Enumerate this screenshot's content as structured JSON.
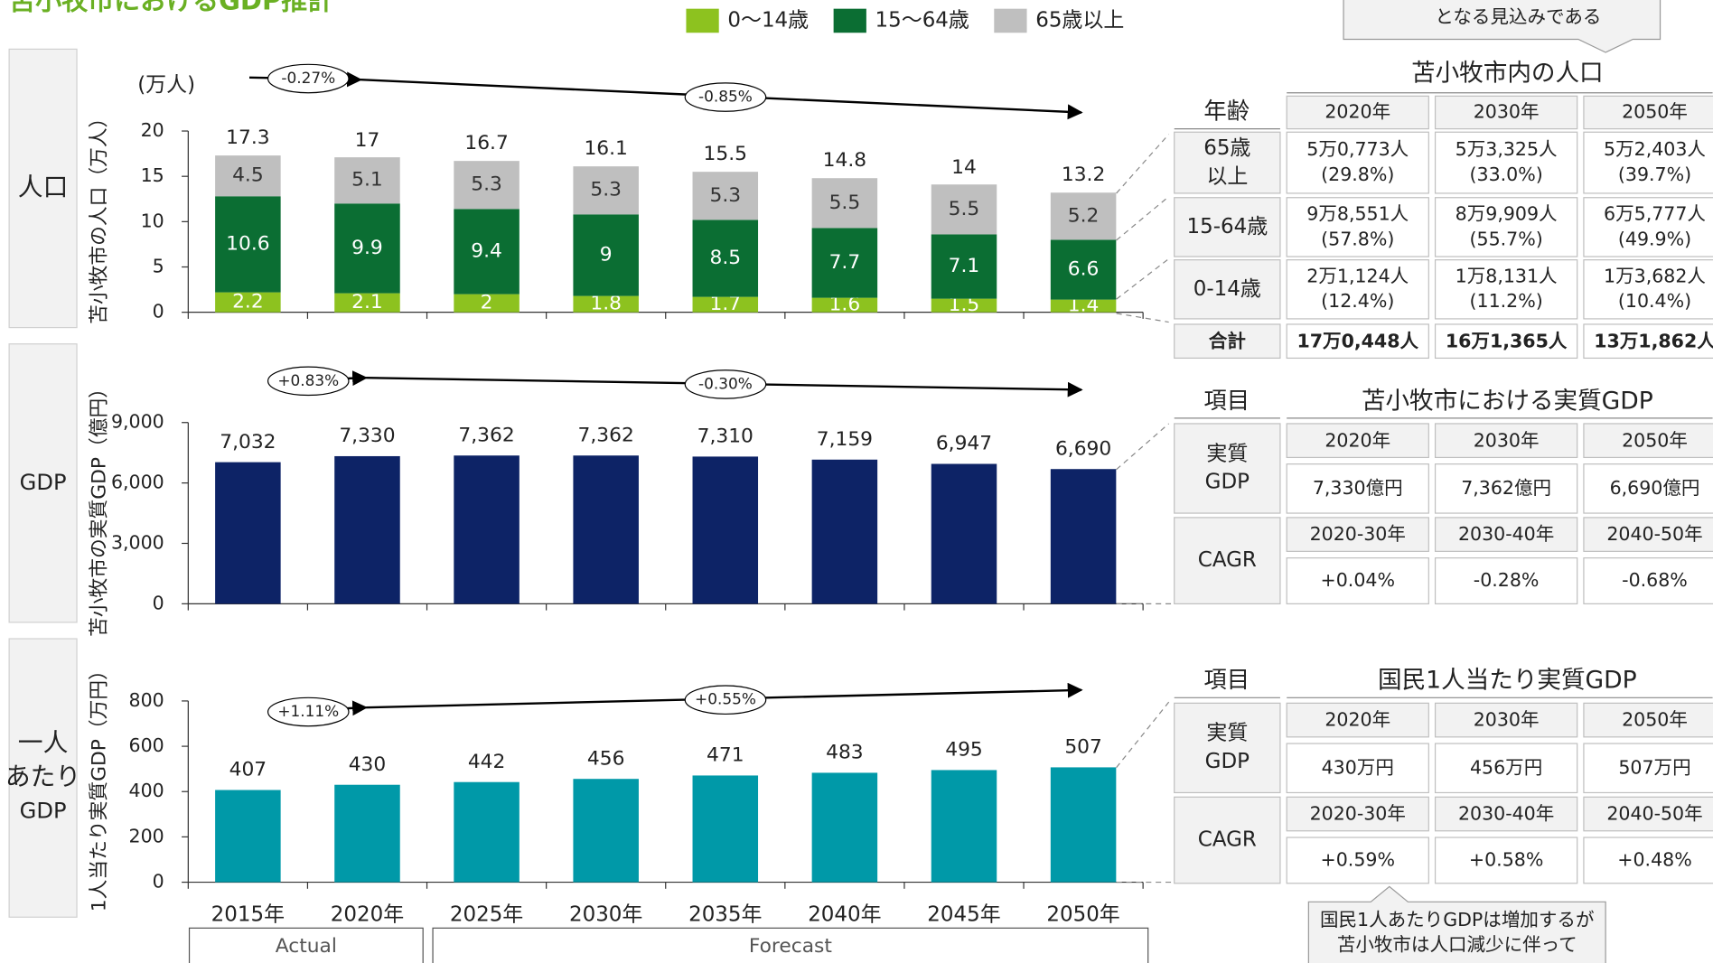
{
  "title": "苫小牧市におけるGDP推計",
  "row_labels": [
    [
      "人口"
    ],
    [
      "GDP"
    ],
    [
      "一人",
      "あたり",
      "GDP"
    ]
  ],
  "callouts": {
    "top": [
      "となる見込みである"
    ],
    "bottom": [
      "国民1人あたりGDPは増加するが",
      "苫小牧市は人口減少に伴って"
    ]
  },
  "chart_data": [
    {
      "type": "stacked_bar",
      "y_label": "苫小牧市の人口（万人）",
      "unit": "(万人)",
      "ylim": [
        0,
        20
      ],
      "yticks": [
        0,
        5,
        10,
        15,
        20
      ],
      "series": [
        {
          "name": "0〜14歳",
          "color": "#8dc21f",
          "values": [
            2.2,
            2.1,
            2.0,
            1.8,
            1.7,
            1.6,
            1.5,
            1.4
          ]
        },
        {
          "name": "15〜64歳",
          "color": "#0b6e33",
          "values": [
            10.6,
            9.9,
            9.4,
            9.0,
            8.5,
            7.7,
            7.1,
            6.6
          ]
        },
        {
          "name": "65歳以上",
          "color": "#bfbfbf",
          "values": [
            4.5,
            5.1,
            5.3,
            5.3,
            5.3,
            5.5,
            5.5,
            5.2
          ]
        }
      ],
      "totals": [
        17.3,
        17.0,
        16.7,
        16.1,
        15.5,
        14.8,
        14.0,
        13.2
      ],
      "annotations": [
        "-0.27%",
        "-0.85%"
      ]
    },
    {
      "type": "bar",
      "y_label": "苫小牧市の実質GDP（億円）",
      "color": "#0d2366",
      "ylim": [
        0,
        9000
      ],
      "yticks": [
        0,
        {
          "value": 3000,
          "label": "3,000"
        },
        {
          "value": 6000,
          "label": "6,000"
        },
        {
          "value": 9000,
          "label": "9,000"
        }
      ],
      "values": [
        7032,
        7330,
        7362,
        7362,
        7310,
        7159,
        6947,
        6690
      ],
      "value_labels": [
        "7,032",
        "7,330",
        "7,362",
        "7,362",
        "7,310",
        "7,159",
        "6,947",
        "6,690"
      ],
      "annotations": [
        "+0.83%",
        "-0.30%"
      ]
    },
    {
      "type": "bar",
      "y_label": "1人当たり実質GDP（万円）",
      "color": "#0099a8",
      "ylim": [
        0,
        800
      ],
      "yticks": [
        0,
        200,
        400,
        600,
        800
      ],
      "categories": [
        "2015年",
        "2020年",
        "2025年",
        "2030年",
        "2035年",
        "2040年",
        "2045年",
        "2050年"
      ],
      "values": [
        407,
        430,
        442,
        456,
        471,
        483,
        495,
        507
      ],
      "periods": [
        "Actual",
        "Forecast"
      ],
      "annotations": [
        "+1.11%",
        "+0.55%"
      ]
    }
  ],
  "tables": [
    {
      "title": "苫小牧市内の人口",
      "label_header": "年齢",
      "columns": [
        "2020年",
        "2030年",
        "2050年"
      ],
      "rows": [
        {
          "label": [
            "65歳",
            "以上"
          ],
          "cells": [
            [
              "5万0,773人",
              "(29.8%)"
            ],
            [
              "5万3,325人",
              "(33.0%)"
            ],
            [
              "5万2,403人",
              "(39.7%)"
            ]
          ]
        },
        {
          "label": [
            "15-64歳"
          ],
          "cells": [
            [
              "9万8,551人",
              "(57.8%)"
            ],
            [
              "8万9,909人",
              "(55.7%)"
            ],
            [
              "6万5,777人",
              "(49.9%)"
            ]
          ]
        },
        {
          "label": [
            "0-14歳"
          ],
          "cells": [
            [
              "2万1,124人",
              "(12.4%)"
            ],
            [
              "1万8,131人",
              "(11.2%)"
            ],
            [
              "1万3,682人",
              "(10.4%)"
            ]
          ]
        }
      ],
      "total": {
        "label": "合計",
        "cells": [
          "17万0,448人",
          "16万1,365人",
          "13万1,862人"
        ]
      }
    },
    {
      "title": "苫小牧市における実質GDP",
      "label_header": "項目",
      "blocks": [
        {
          "label": [
            "実質",
            "GDP"
          ],
          "columns": [
            "2020年",
            "2030年",
            "2050年"
          ],
          "cells": [
            "7,330億円",
            "7,362億円",
            "6,690億円"
          ]
        },
        {
          "label": [
            "CAGR"
          ],
          "columns": [
            "2020-30年",
            "2030-40年",
            "2040-50年"
          ],
          "cells": [
            "+0.04%",
            "-0.28%",
            "-0.68%"
          ]
        }
      ]
    },
    {
      "title": "国民1人当たり実質GDP",
      "label_header": "項目",
      "blocks": [
        {
          "label": [
            "実質",
            "GDP"
          ],
          "columns": [
            "2020年",
            "2030年",
            "2050年"
          ],
          "cells": [
            "430万円",
            "456万円",
            "507万円"
          ]
        },
        {
          "label": [
            "CAGR"
          ],
          "columns": [
            "2020-30年",
            "2030-40年",
            "2040-50年"
          ],
          "cells": [
            "+0.59%",
            "+0.58%",
            "+0.48%"
          ]
        }
      ]
    }
  ]
}
